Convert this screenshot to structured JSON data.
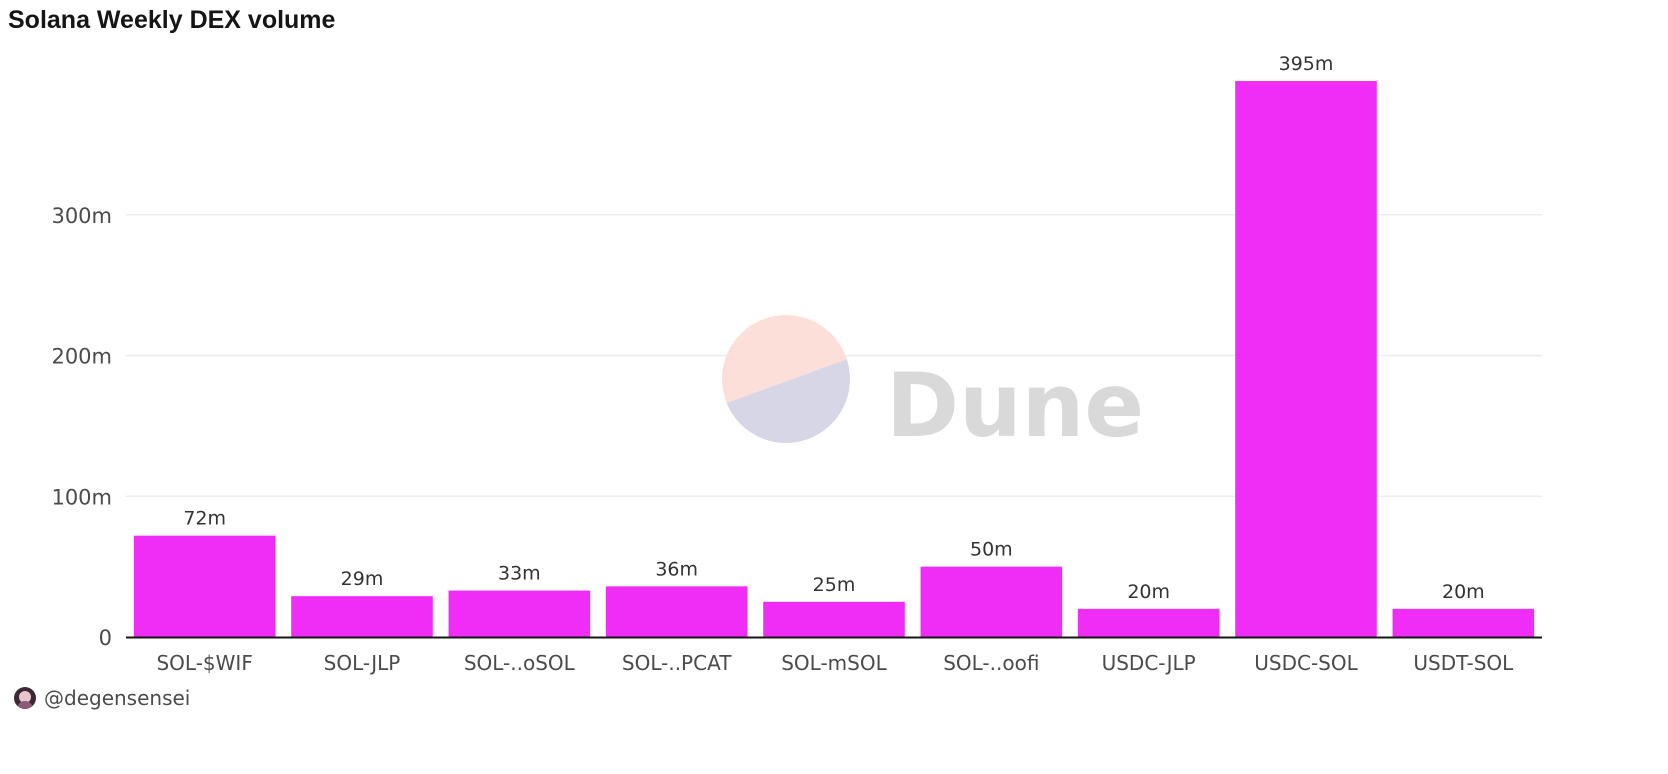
{
  "chart_data": {
    "type": "bar",
    "title": "Solana Weekly DEX volume",
    "xlabel": "",
    "ylabel": "",
    "categories": [
      "SOL-$WIF",
      "SOL-JLP",
      "SOL-..oSOL",
      "SOL-..PCAT",
      "SOL-mSOL",
      "SOL-..oofi",
      "USDC-JLP",
      "USDC-SOL",
      "USDT-SOL"
    ],
    "values": [
      72,
      29,
      33,
      36,
      25,
      50,
      20,
      395,
      20
    ],
    "data_labels": [
      "72m",
      "29m",
      "33m",
      "36m",
      "25m",
      "50m",
      "20m",
      "395m",
      "20m"
    ],
    "unit": "m",
    "yticks": [
      0,
      100,
      200,
      300
    ],
    "ytick_labels": [
      "0",
      "100m",
      "200m",
      "300m"
    ],
    "ylim": [
      0,
      400
    ],
    "grid": true,
    "legend": "none",
    "bar_color": "#f02cf7",
    "grid_color": "#ececec",
    "axis_color": "#151515"
  },
  "watermark": {
    "text": "Dune",
    "colors": {
      "top": "#fcdfd9",
      "bottom": "#d6d6e6",
      "text": "#d9d9d9"
    }
  },
  "footer": {
    "handle": "@degensensei",
    "avatar_icon": "avatar-icon"
  }
}
